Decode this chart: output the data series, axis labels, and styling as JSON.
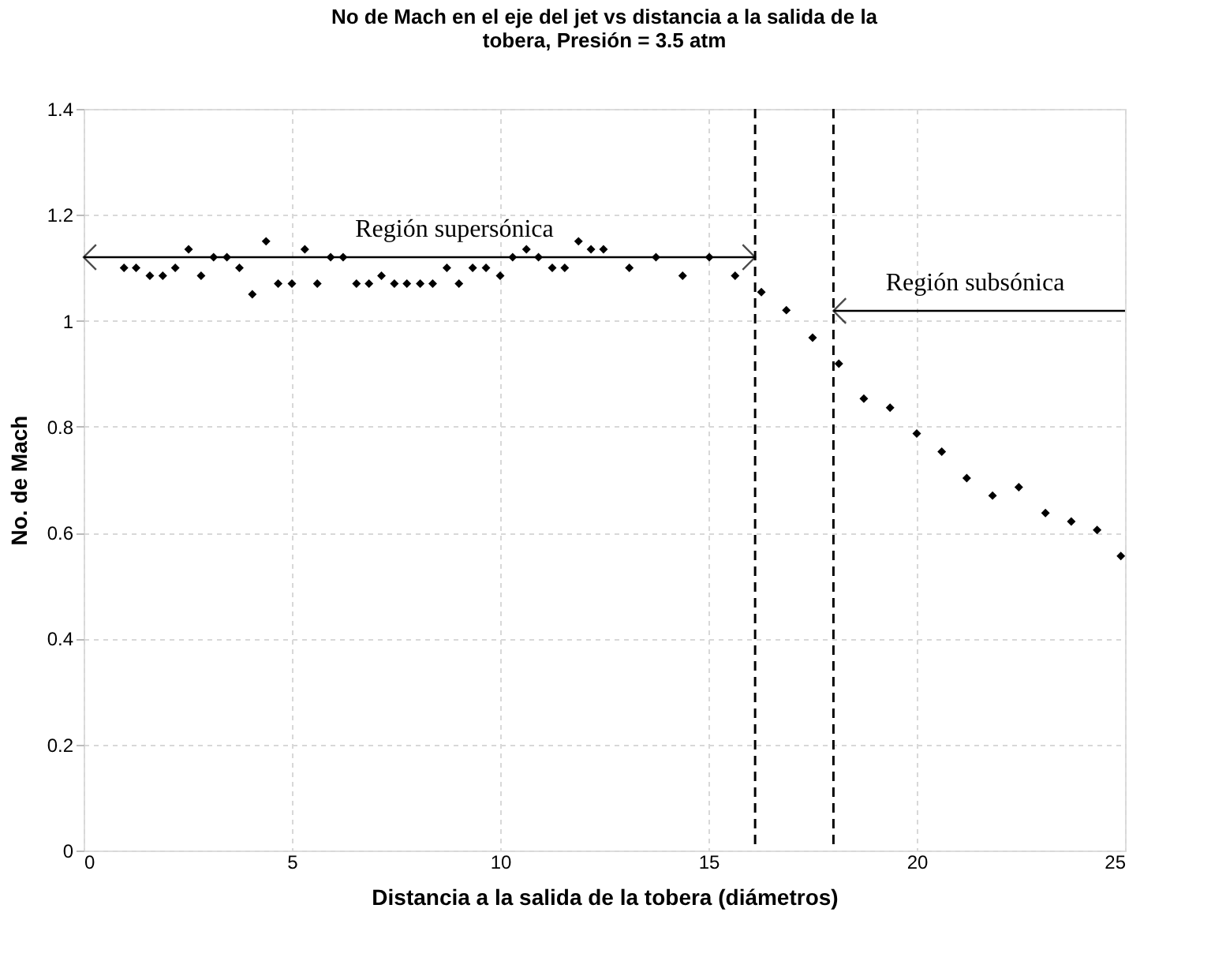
{
  "chart_data": {
    "type": "scatter",
    "title": [
      "No de Mach en el eje del jet vs distancia a la salida de la",
      "tobera, Presión = 3.5 atm"
    ],
    "xlabel": "Distancia a la salida de la tobera (diámetros)",
    "ylabel": "No. de Mach",
    "x": [
      0.97,
      1.26,
      1.59,
      1.9,
      2.2,
      2.52,
      2.82,
      3.12,
      3.44,
      3.74,
      4.05,
      4.38,
      4.67,
      5.0,
      5.31,
      5.61,
      5.93,
      6.23,
      6.55,
      6.85,
      7.15,
      7.46,
      7.76,
      8.08,
      8.38,
      8.72,
      9.01,
      9.34,
      9.66,
      10.0,
      10.3,
      10.63,
      10.92,
      11.25,
      11.55,
      11.88,
      12.18,
      12.48,
      13.1,
      13.74,
      14.38,
      15.02,
      15.64,
      16.27,
      16.87,
      17.5,
      18.13,
      18.73,
      19.36,
      20.0,
      20.6,
      21.2,
      21.82,
      22.45,
      23.09,
      23.71,
      24.33,
      24.9
    ],
    "values": [
      1.1,
      1.1,
      1.085,
      1.085,
      1.1,
      1.135,
      1.085,
      1.12,
      1.12,
      1.1,
      1.05,
      1.15,
      1.07,
      1.07,
      1.135,
      1.07,
      1.12,
      1.12,
      1.07,
      1.07,
      1.085,
      1.07,
      1.07,
      1.07,
      1.07,
      1.1,
      1.07,
      1.1,
      1.1,
      1.085,
      1.12,
      1.135,
      1.12,
      1.1,
      1.1,
      1.15,
      1.135,
      1.135,
      1.1,
      1.12,
      1.085,
      1.12,
      1.085,
      1.054,
      1.02,
      0.968,
      0.919,
      0.853,
      0.836,
      0.787,
      0.753,
      0.703,
      0.67,
      0.686,
      0.637,
      0.621,
      0.605,
      0.556
    ],
    "color": "#000000",
    "marker": "diamond",
    "xlim": [
      0,
      25
    ],
    "xticks": [
      0,
      5,
      10,
      15,
      20,
      25
    ],
    "ylim": [
      0,
      1.4
    ],
    "yticks": [
      0,
      0.2,
      0.4,
      0.6,
      0.8,
      1,
      1.2,
      1.4
    ],
    "grid": true,
    "ref_lines": [
      {
        "axis": "x",
        "value": 16.12,
        "line_style": "dashed",
        "color": "#000000"
      },
      {
        "axis": "x",
        "value": 18.0,
        "line_style": "dashed",
        "color": "#000000"
      }
    ],
    "annotations": [
      "Región supersónica",
      "Región subsónica"
    ]
  }
}
